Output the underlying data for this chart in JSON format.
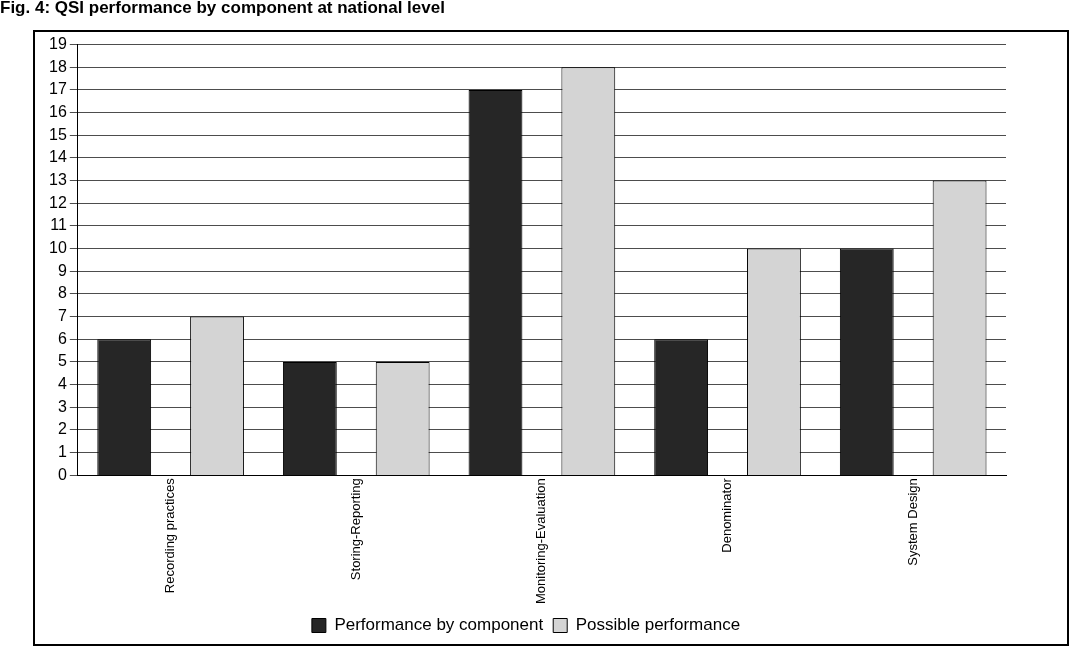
{
  "chart_data": {
    "type": "bar",
    "title": "Fig. 4: QSI performance by component at national level",
    "categories": [
      "Recording practices",
      "Storing-Reporting",
      "Monitoring-Evaluation",
      "Denominator",
      "System Design"
    ],
    "series": [
      {
        "name": "Performance by component",
        "color": "#262626",
        "values": [
          6,
          5,
          17,
          6,
          10
        ]
      },
      {
        "name": "Possible performance",
        "color": "#d4d4d4",
        "values": [
          7,
          5,
          18,
          10,
          13
        ]
      }
    ],
    "ylim": [
      0,
      19
    ],
    "yticks": [
      0,
      1,
      2,
      3,
      4,
      5,
      6,
      7,
      8,
      9,
      10,
      11,
      12,
      13,
      14,
      15,
      16,
      17,
      18,
      19
    ],
    "grid": "y",
    "legend": "bottom"
  }
}
